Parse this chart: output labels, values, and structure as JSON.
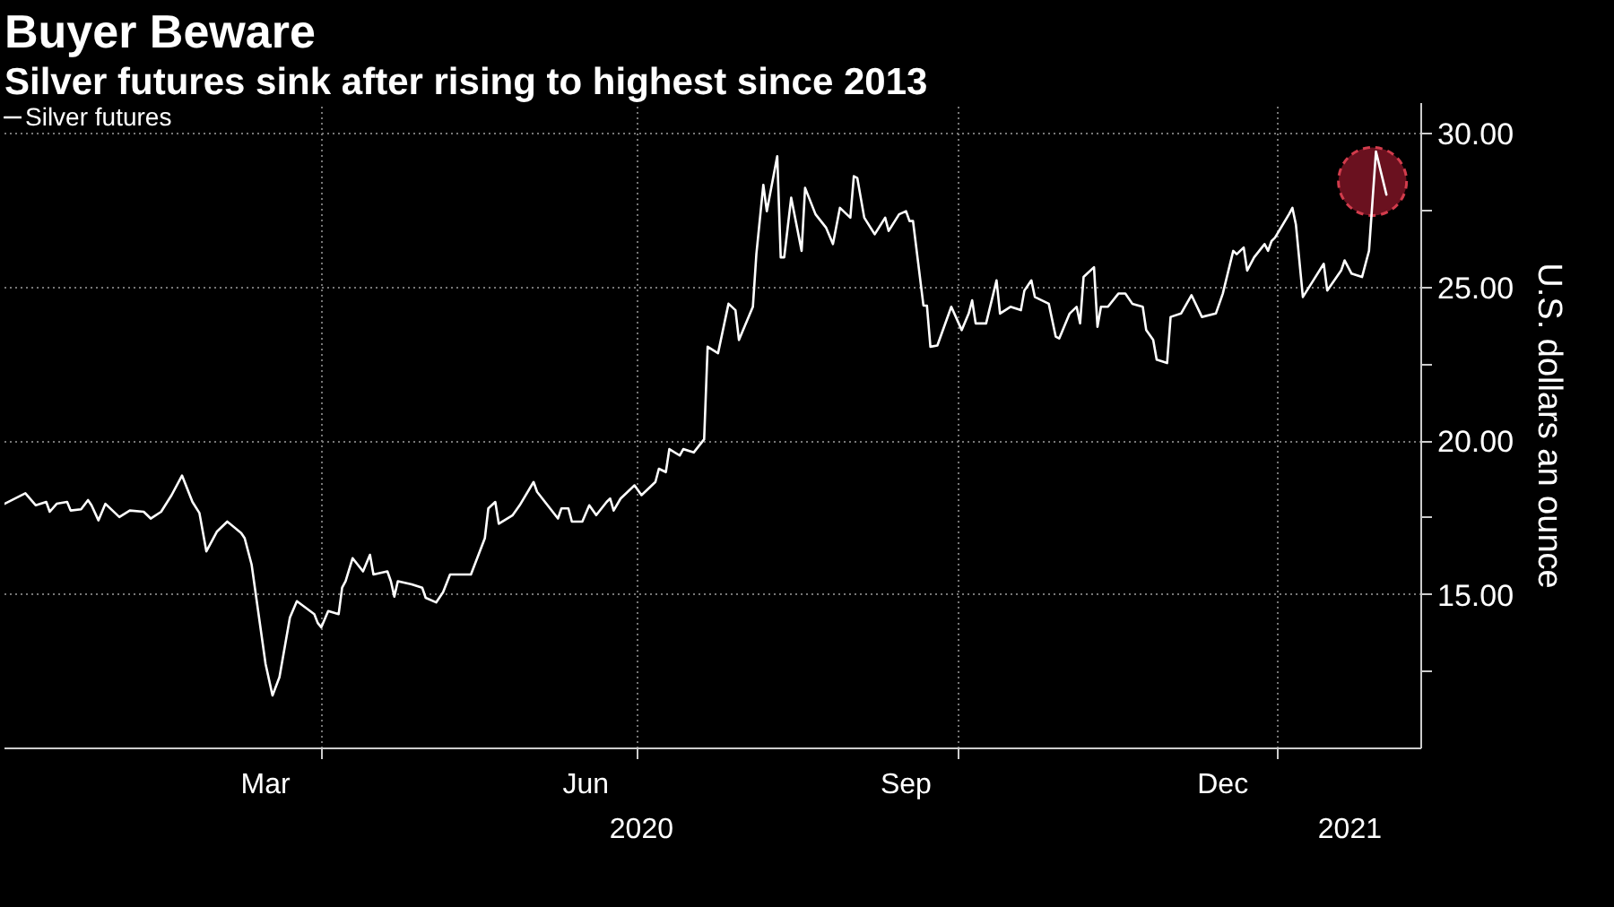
{
  "chart_data": {
    "type": "line",
    "title": "Buyer Beware",
    "subtitle": "Silver futures sink after rising to highest since 2013",
    "ylabel": "U.S. dollars an ounce",
    "xlim": [
      "2020-01-01",
      "2021-02-11"
    ],
    "ylim": [
      10,
      31
    ],
    "xticks": [
      {
        "value": "2020-04-01",
        "label": null
      },
      {
        "value": "2020-07-01",
        "label": null
      },
      {
        "value": "2020-10-01",
        "label": null
      },
      {
        "value": "2021-01-01",
        "label": null
      },
      {
        "value": "2020-03-16",
        "label": "Mar"
      },
      {
        "value": "2020-06-16",
        "label": "Jun"
      },
      {
        "value": "2020-09-16",
        "label": "Sep"
      },
      {
        "value": "2020-12-16",
        "label": "Dec"
      }
    ],
    "yticks": [
      {
        "value": 12.5,
        "label": null
      },
      {
        "value": 15,
        "label": "15.00"
      },
      {
        "value": 17.5,
        "label": null
      },
      {
        "value": 20,
        "label": "20.00"
      },
      {
        "value": 22.5,
        "label": null
      },
      {
        "value": 25,
        "label": "25.00"
      },
      {
        "value": 27.5,
        "label": null
      },
      {
        "value": 30,
        "label": "30.00"
      }
    ],
    "annotations": [
      "2020",
      "2021"
    ],
    "grid": true,
    "legend": "top left",
    "marker": "none",
    "line_style": "solid",
    "series": [
      {
        "name": "Silver futures",
        "color": "#ffffff",
        "x": [
          "2020-01-01",
          "2020-01-07",
          "2020-01-10",
          "2020-01-13",
          "2020-01-14",
          "2020-01-16",
          "2020-01-19",
          "2020-01-20",
          "2020-01-23",
          "2020-01-25",
          "2020-01-26",
          "2020-01-28",
          "2020-01-30",
          "2020-02-03",
          "2020-02-06",
          "2020-02-10",
          "2020-02-12",
          "2020-02-15",
          "2020-02-18",
          "2020-02-21",
          "2020-02-24",
          "2020-02-26",
          "2020-02-28",
          "2020-03-02",
          "2020-03-05",
          "2020-03-09",
          "2020-03-10",
          "2020-03-12",
          "2020-03-16",
          "2020-03-18",
          "2020-03-20",
          "2020-03-23",
          "2020-03-25",
          "2020-03-30",
          "2020-03-31",
          "2020-04-01",
          "2020-04-03",
          "2020-04-06",
          "2020-04-07",
          "2020-04-08",
          "2020-04-10",
          "2020-04-13",
          "2020-04-15",
          "2020-04-16",
          "2020-04-20",
          "2020-04-21",
          "2020-04-22",
          "2020-04-23",
          "2020-04-27",
          "2020-04-30",
          "2020-05-01",
          "2020-05-04",
          "2020-05-06",
          "2020-05-08",
          "2020-05-11",
          "2020-05-14",
          "2020-05-18",
          "2020-05-19",
          "2020-05-21",
          "2020-05-22",
          "2020-05-26",
          "2020-05-28",
          "2020-06-01",
          "2020-06-02",
          "2020-06-08",
          "2020-06-09",
          "2020-06-11",
          "2020-06-12",
          "2020-06-15",
          "2020-06-17",
          "2020-06-19",
          "2020-06-22",
          "2020-06-23",
          "2020-06-24",
          "2020-06-26",
          "2020-06-30",
          "2020-07-02",
          "2020-07-06",
          "2020-07-07",
          "2020-07-09",
          "2020-07-10",
          "2020-07-13",
          "2020-07-14",
          "2020-07-17",
          "2020-07-20",
          "2020-07-21",
          "2020-07-24",
          "2020-07-27",
          "2020-07-29",
          "2020-07-30",
          "2020-08-03",
          "2020-08-04",
          "2020-08-06",
          "2020-08-07",
          "2020-08-10",
          "2020-08-11",
          "2020-08-12",
          "2020-08-14",
          "2020-08-17",
          "2020-08-18",
          "2020-08-21",
          "2020-08-24",
          "2020-08-26",
          "2020-08-28",
          "2020-08-31",
          "2020-09-01",
          "2020-09-02",
          "2020-09-04",
          "2020-09-07",
          "2020-09-10",
          "2020-09-11",
          "2020-09-14",
          "2020-09-16",
          "2020-09-17",
          "2020-09-18",
          "2020-09-21",
          "2020-09-22",
          "2020-09-23",
          "2020-09-25",
          "2020-09-29",
          "2020-10-02",
          "2020-10-04",
          "2020-10-05",
          "2020-10-06",
          "2020-10-09",
          "2020-10-12",
          "2020-10-13",
          "2020-10-16",
          "2020-10-19",
          "2020-10-20",
          "2020-10-22",
          "2020-10-23",
          "2020-10-27",
          "2020-10-29",
          "2020-10-30",
          "2020-11-02",
          "2020-11-04",
          "2020-11-05",
          "2020-11-06",
          "2020-11-09",
          "2020-11-10",
          "2020-11-11",
          "2020-11-13",
          "2020-11-16",
          "2020-11-18",
          "2020-11-20",
          "2020-11-23",
          "2020-11-24",
          "2020-11-26",
          "2020-11-27",
          "2020-11-30",
          "2020-12-01",
          "2020-12-04",
          "2020-12-07",
          "2020-12-10",
          "2020-12-14",
          "2020-12-16",
          "2020-12-19",
          "2020-12-20",
          "2020-12-22",
          "2020-12-23",
          "2020-12-25",
          "2020-12-28",
          "2020-12-29",
          "2020-12-30",
          "2020-12-31",
          "2021-01-04",
          "2021-01-05",
          "2021-01-06",
          "2021-01-08",
          "2021-01-11",
          "2021-01-14",
          "2021-01-15",
          "2021-01-19",
          "2021-01-20",
          "2021-01-22",
          "2021-01-25",
          "2021-01-27",
          "2021-01-28",
          "2021-01-29",
          "2021-02-01"
        ],
        "values": [
          17.96,
          18.3,
          17.91,
          18.02,
          17.7,
          17.96,
          18.02,
          17.74,
          17.78,
          18.08,
          17.91,
          17.42,
          17.96,
          17.53,
          17.74,
          17.7,
          17.48,
          17.7,
          18.24,
          18.88,
          18.02,
          17.66,
          16.41,
          17.05,
          17.38,
          17.01,
          16.84,
          15.98,
          12.75,
          11.72,
          12.32,
          14.26,
          14.79,
          14.37,
          14.08,
          13.94,
          14.47,
          14.37,
          15.23,
          15.44,
          16.19,
          15.76,
          16.3,
          15.66,
          15.76,
          15.44,
          14.94,
          15.44,
          15.34,
          15.23,
          14.9,
          14.75,
          15.08,
          15.66,
          15.66,
          15.66,
          16.84,
          17.81,
          18.02,
          17.31,
          17.59,
          17.91,
          18.67,
          18.35,
          17.48,
          17.81,
          17.81,
          17.38,
          17.38,
          17.91,
          17.59,
          18.02,
          18.13,
          17.74,
          18.13,
          18.56,
          18.24,
          18.67,
          19.1,
          18.99,
          19.74,
          19.53,
          19.74,
          19.63,
          20.06,
          23.07,
          22.86,
          24.47,
          24.26,
          23.29,
          24.37,
          26.08,
          28.34,
          27.48,
          29.27,
          25.98,
          25.98,
          27.92,
          26.19,
          28.24,
          27.38,
          26.95,
          26.41,
          27.59,
          27.27,
          28.62,
          28.56,
          27.27,
          26.73,
          27.27,
          26.84,
          27.38,
          27.48,
          27.16,
          27.16,
          24.41,
          24.41,
          23.07,
          23.11,
          24.37,
          23.61,
          24.15,
          24.58,
          23.83,
          23.83,
          25.23,
          24.15,
          24.37,
          24.26,
          24.9,
          25.23,
          24.69,
          24.47,
          23.4,
          23.34,
          24.15,
          24.37,
          23.83,
          25.34,
          25.66,
          23.72,
          24.37,
          24.37,
          24.8,
          24.8,
          24.47,
          24.37,
          23.61,
          23.29,
          22.65,
          22.54,
          24.04,
          24.15,
          24.75,
          24.04,
          24.15,
          24.8,
          26.19,
          26.08,
          26.3,
          25.55,
          25.98,
          26.41,
          26.19,
          26.51,
          26.62,
          27.38,
          27.59,
          27.05,
          24.69,
          25.23,
          25.77,
          24.9,
          25.55,
          25.88,
          25.45,
          25.34,
          26.19,
          27.81,
          29.42,
          28.02
        ]
      },
      {
        "color": "#7d1424",
        "type": "scatter",
        "marker": "circle",
        "x": [
          "2021-01-28"
        ],
        "values": [
          28.45
        ]
      }
    ]
  }
}
